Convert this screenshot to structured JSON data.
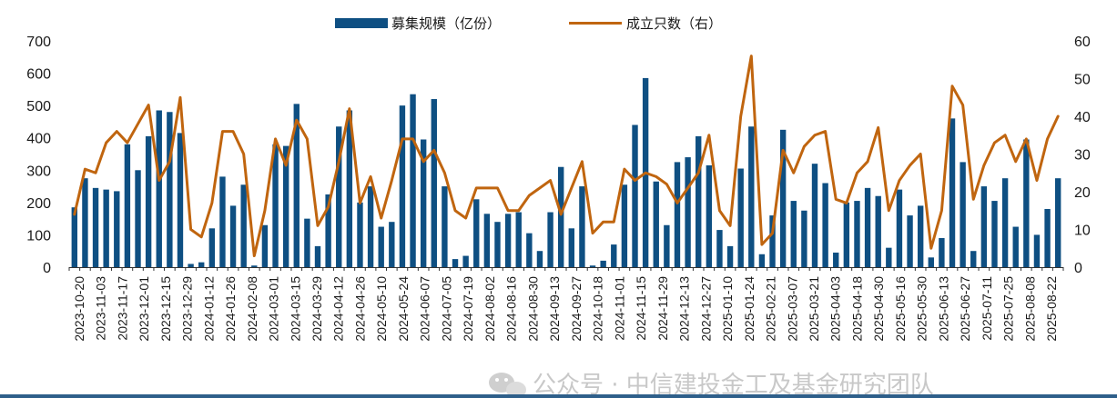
{
  "chart_data": {
    "type": "bar+line",
    "legend": {
      "bar_label": "募集规模（亿份）",
      "line_label": "成立只数（右）",
      "placement": "top-center"
    },
    "left_axis": {
      "min": 0,
      "max": 700,
      "ticks": [
        "0",
        "100",
        "200",
        "300",
        "400",
        "500",
        "600",
        "700"
      ]
    },
    "right_axis": {
      "min": 0,
      "max": 60,
      "ticks": [
        "0",
        "10",
        "20",
        "30",
        "40",
        "50",
        "60"
      ]
    },
    "grid": false,
    "x_tick_labels": [
      "2023-10-20",
      "2023-11-03",
      "2023-11-17",
      "2023-12-01",
      "2023-12-15",
      "2023-12-29",
      "2024-01-12",
      "2024-01-26",
      "2024-02-08",
      "2024-03-01",
      "2024-03-15",
      "2024-03-29",
      "2024-04-12",
      "2024-04-26",
      "2024-05-10",
      "2024-05-24",
      "2024-06-07",
      "2024-07-05",
      "2024-07-19",
      "2024-08-02",
      "2024-08-16",
      "2024-08-30",
      "2024-09-13",
      "2024-09-27",
      "2024-10-18",
      "2024-11-01",
      "2024-11-15",
      "2024-11-29",
      "2024-12-13",
      "2024-12-27",
      "2025-01-10",
      "2025-01-24",
      "2025-02-21",
      "2025-03-07",
      "2025-03-21",
      "2025-04-03",
      "2025-04-18",
      "2025-04-30",
      "2025-05-16",
      "2025-05-30",
      "2025-06-13",
      "2025-06-27",
      "2025-07-11",
      "2025-07-25",
      "2025-08-08",
      "2025-08-22"
    ],
    "series": [
      {
        "name": "募集规模（亿份）",
        "type": "bar",
        "axis": "left",
        "color": "#0e4f82",
        "values": [
          185,
          275,
          245,
          240,
          235,
          380,
          300,
          405,
          485,
          480,
          415,
          10,
          15,
          120,
          280,
          190,
          255,
          5,
          130,
          380,
          375,
          505,
          150,
          65,
          225,
          435,
          485,
          200,
          250,
          125,
          140,
          500,
          535,
          395,
          520,
          250,
          25,
          35,
          210,
          165,
          140,
          165,
          170,
          105,
          50,
          170,
          310,
          120,
          250,
          5,
          20,
          70,
          255,
          440,
          585,
          265,
          130,
          325,
          340,
          405,
          315,
          115,
          65,
          305,
          435,
          40,
          160,
          425,
          205,
          175,
          320,
          260,
          45,
          200,
          205,
          245,
          220,
          60,
          240,
          160,
          190,
          30,
          90,
          460,
          325,
          50,
          250,
          205,
          275,
          125,
          395,
          100,
          180,
          275
        ]
      },
      {
        "name": "成立只数（右）",
        "type": "line",
        "axis": "right",
        "color": "#c0650f",
        "values": [
          14,
          26,
          25,
          33,
          36,
          33,
          38,
          43,
          23,
          28,
          45,
          10,
          8,
          17,
          36,
          36,
          30,
          3,
          15,
          34,
          27,
          39,
          34,
          11,
          16,
          28,
          42,
          17,
          24,
          13,
          23,
          34,
          34,
          28,
          31,
          25,
          15,
          13,
          21,
          21,
          21,
          15,
          15,
          19,
          21,
          23,
          14,
          21,
          28,
          9,
          12,
          12,
          26,
          23,
          25,
          24,
          22,
          17,
          21,
          25,
          35,
          15,
          11,
          40,
          56,
          6,
          9,
          31,
          25,
          32,
          35,
          36,
          18,
          17,
          25,
          28,
          37,
          15,
          23,
          27,
          30,
          5,
          15,
          48,
          43,
          18,
          27,
          33,
          35,
          28,
          34,
          23,
          34,
          40
        ]
      }
    ]
  },
  "watermark": {
    "icon": "wechat-icon",
    "text": "公众号 · 中信建投金工及基金研究团队"
  },
  "colors": {
    "bar": "#0e4f82",
    "line": "#c0650f",
    "axis": "#333333",
    "bottom_rule": "#2e5f8a"
  }
}
